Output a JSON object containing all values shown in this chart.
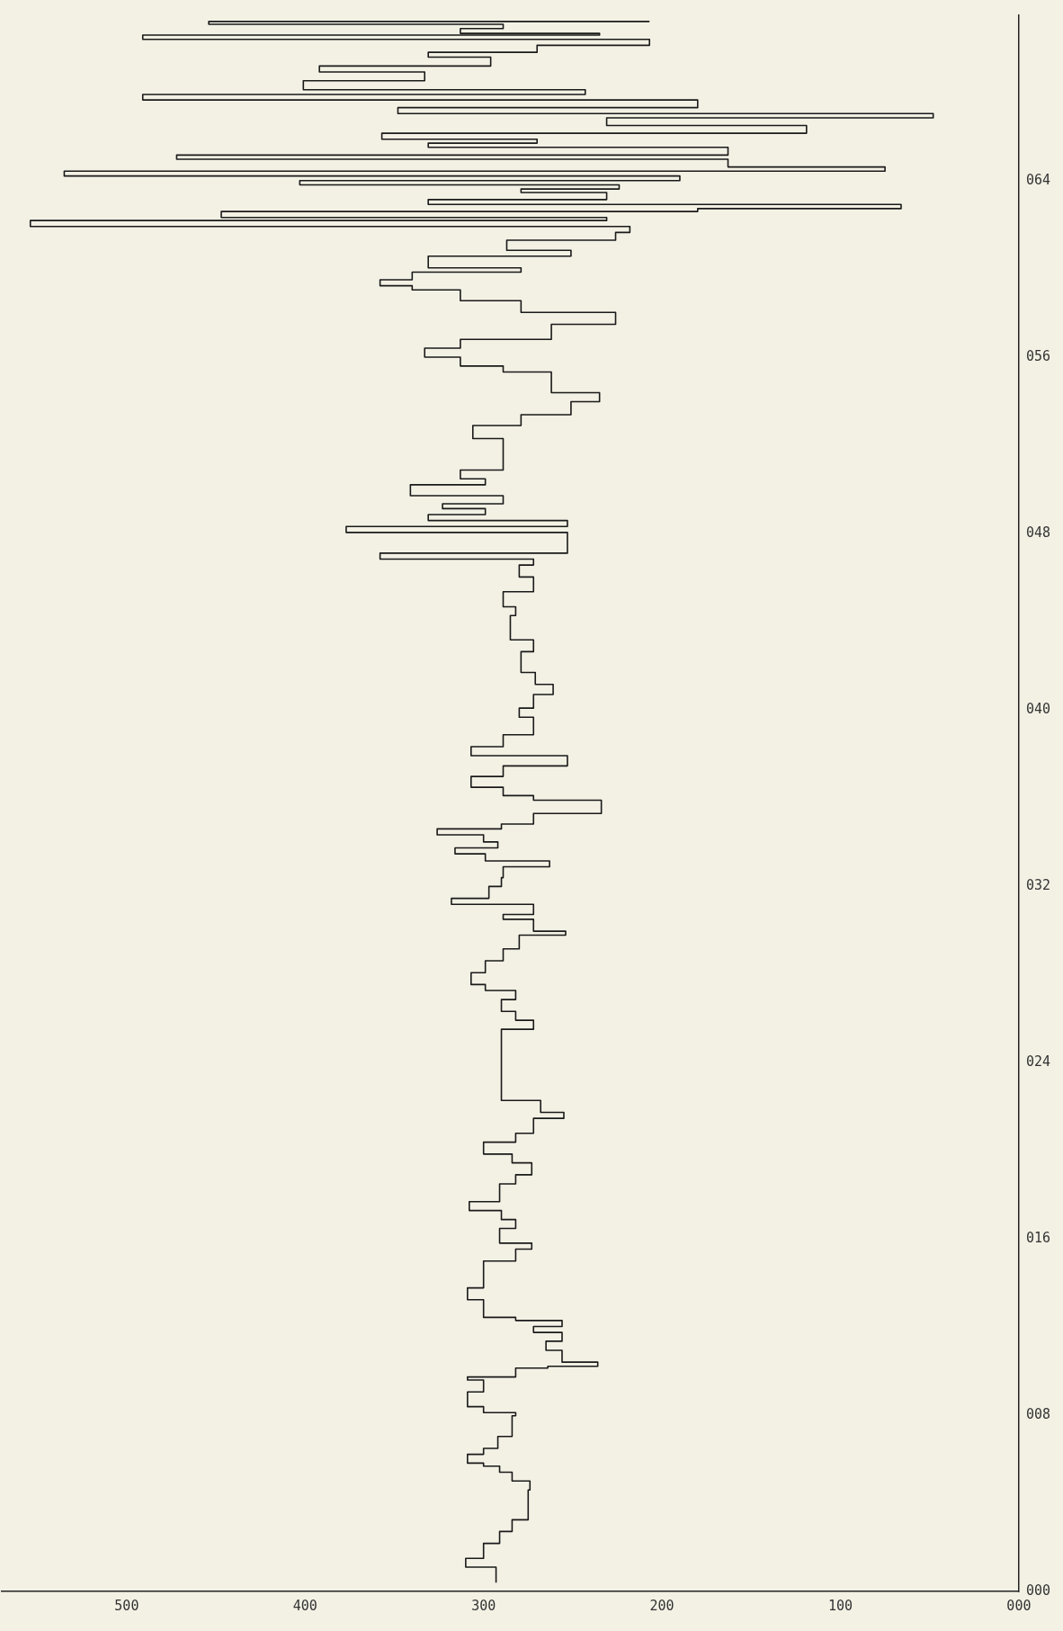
{
  "chart_data": {
    "type": "step",
    "orientation": "horizontal",
    "color": "#1a1a1a",
    "x": [
      0.4,
      1.1,
      1.5,
      2.18,
      2.72,
      3.25,
      4.6,
      5.01,
      5.41,
      5.68,
      5.82,
      6.22,
      6.49,
      7.03,
      7.97,
      8.11,
      8.38,
      9.05,
      9.59,
      9.73,
      10.13,
      10.21,
      10.4,
      10.94,
      11.35,
      11.75,
      12.02,
      12.29,
      12.43,
      13.23,
      13.77,
      14.58,
      14.99,
      15.53,
      15.8,
      16.47,
      16.87,
      17.28,
      17.68,
      18.49,
      18.9,
      19.44,
      19.84,
      20.38,
      20.78,
      21.46,
      21.73,
      22.27,
      23.97,
      25.5,
      25.91,
      26.31,
      26.85,
      27.26,
      27.53,
      28.07,
      28.61,
      29.15,
      29.77,
      29.95,
      30.49,
      30.71,
      31.17,
      31.44,
      31.98,
      32.38,
      32.87,
      33.14,
      33.46,
      33.73,
      34.0,
      34.32,
      34.59,
      34.81,
      35.29,
      35.89,
      36.1,
      36.48,
      36.97,
      37.45,
      37.91,
      38.32,
      38.86,
      39.66,
      40.07,
      40.69,
      41.15,
      41.69,
      42.63,
      43.17,
      44.27,
      44.67,
      45.35,
      46.02,
      46.56,
      46.83,
      47.1,
      48.04,
      48.31,
      48.58,
      48.85,
      49.12,
      49.34,
      49.71,
      50.2,
      50.47,
      50.87,
      51.55,
      52.3,
      52.89,
      53.38,
      53.97,
      54.38,
      55.32,
      55.59,
      55.99,
      56.4,
      56.8,
      57.48,
      58.02,
      58.55,
      59.04,
      59.23,
      59.5,
      59.85,
      60.04,
      60.57,
      60.84,
      61.3,
      61.65,
      61.92,
      62.19,
      62.33,
      62.6,
      62.73,
      62.92,
      63.14,
      63.46,
      63.62,
      63.81,
      64.0,
      64.21,
      64.43,
      64.62,
      64.97,
      65.16,
      65.51,
      65.7,
      65.88,
      66.15,
      66.5,
      66.85,
      67.04,
      67.31,
      67.66,
      67.91,
      68.12,
      68.53,
      68.93,
      69.2,
      69.6,
      69.82,
      70.14,
      70.41,
      70.6,
      70.68,
      70.9,
      71.09,
      71.22
    ],
    "values": [
      293,
      310,
      300,
      291,
      284,
      275,
      274,
      284,
      291,
      300,
      309,
      300,
      292,
      284,
      282,
      300,
      309,
      300,
      309,
      282,
      264,
      236,
      256,
      265,
      256,
      272,
      256,
      282,
      300,
      309,
      300,
      300,
      282,
      273,
      291,
      282,
      290,
      308,
      291,
      282,
      273,
      284,
      300,
      282,
      272,
      255,
      268,
      290,
      290,
      272,
      282,
      290,
      282,
      299,
      307,
      299,
      289,
      280,
      254,
      272,
      289,
      272,
      318,
      297,
      290,
      289,
      263,
      299,
      316,
      292,
      300,
      326,
      290,
      272,
      234,
      272,
      289,
      307,
      289,
      253,
      307,
      289,
      272,
      280,
      272,
      261,
      271,
      279,
      272,
      285,
      282,
      289,
      272,
      280,
      272,
      358,
      253,
      377,
      253,
      331,
      299,
      323,
      289,
      341,
      299,
      313,
      289,
      289,
      306,
      279,
      251,
      235,
      262,
      289,
      313,
      333,
      313,
      262,
      226,
      279,
      313,
      340,
      358,
      340,
      279,
      331,
      251,
      287,
      226,
      218,
      554,
      231,
      447,
      180,
      66,
      331,
      231,
      279,
      224,
      403,
      190,
      535,
      75,
      163,
      472,
      163,
      331,
      270,
      357,
      119,
      231,
      48,
      348,
      180,
      491,
      243,
      401,
      333,
      392,
      296,
      331,
      270,
      207,
      491,
      235,
      313,
      289,
      454,
      207
    ],
    "xlim": [
      570,
      0
    ],
    "xticks": [
      {
        "value": 0,
        "label": "000"
      },
      100,
      200,
      300,
      400,
      500
    ],
    "ylim": [
      0,
      71.5
    ],
    "yticks": [
      {
        "value": 0,
        "label": "000"
      },
      {
        "value": 8,
        "label": "008"
      },
      {
        "value": 16,
        "label": "016"
      },
      {
        "value": 24,
        "label": "024"
      },
      {
        "value": 32,
        "label": "032"
      },
      {
        "value": 40,
        "label": "040"
      },
      {
        "value": 48,
        "label": "048"
      },
      {
        "value": 56,
        "label": "056"
      },
      {
        "value": 64,
        "label": "064"
      }
    ]
  }
}
